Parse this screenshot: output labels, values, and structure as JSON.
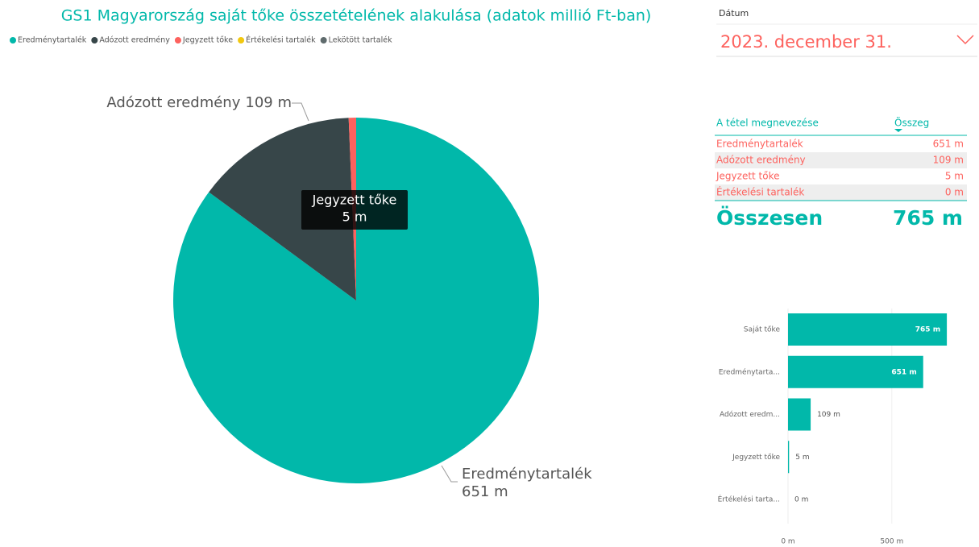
{
  "chart_data": [
    {
      "type": "pie",
      "title": "GS1 Magyarország saját tőke összetételének alakulása (adatok millió Ft-ban)",
      "categories": [
        "Eredménytartalék",
        "Adózott eredmény",
        "Jegyzett tőke",
        "Értékelési tartalék",
        "Lekötött tartalék"
      ],
      "values": [
        651,
        109,
        5,
        0,
        null
      ],
      "value_labels": [
        "651 m",
        "109 m",
        "5 m",
        "0 m",
        null
      ],
      "colors": [
        "#01B8AA",
        "#374649",
        "#FD625E",
        "#F2C80F",
        "#5F6B6D"
      ],
      "legend": "top-left"
    },
    {
      "type": "hbar",
      "categories": [
        "Saját tőke",
        "Eredménytarta...",
        "Adózott eredm...",
        "Jegyzett tőke",
        "Értékelési tarta..."
      ],
      "values": [
        765,
        651,
        109,
        5,
        0
      ],
      "value_labels": [
        "765 m",
        "651 m",
        "109 m",
        "5 m",
        "0 m"
      ],
      "color": "#01B8AA",
      "xlim": [
        0,
        850
      ],
      "xticks": [
        {
          "value": 0,
          "label": "0 m"
        },
        {
          "value": 500,
          "label": "500 m"
        }
      ]
    }
  ],
  "slicer": {
    "label": "Dátum",
    "value": "2023. december 31."
  },
  "table": {
    "header": [
      "A tétel megnevezése",
      "Összeg"
    ],
    "rows": [
      [
        "Eredménytartalék",
        "651 m"
      ],
      [
        "Adózott eredmény",
        "109 m"
      ],
      [
        "Jegyzett tőke",
        "5 m"
      ],
      [
        "Értékelési tartalék",
        "0 m"
      ]
    ],
    "total": [
      "Összesen",
      "765 m"
    ]
  }
}
